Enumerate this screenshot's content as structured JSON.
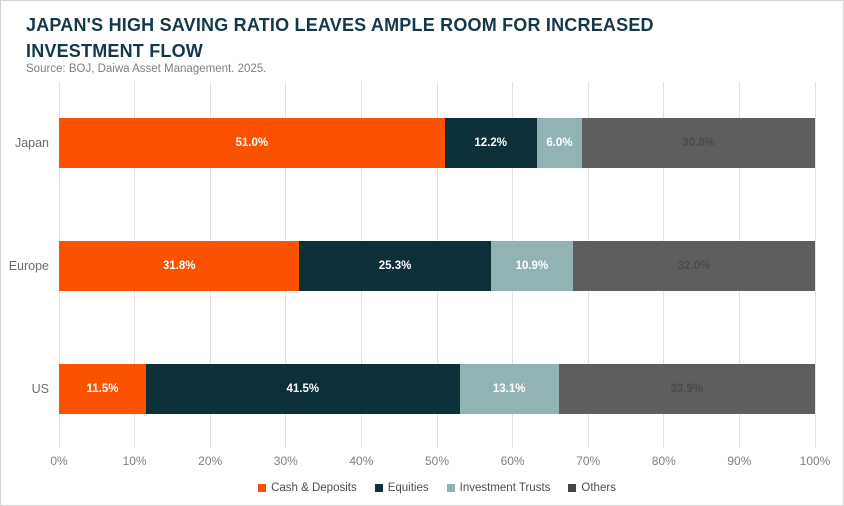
{
  "title": "JAPAN'S HIGH SAVING RATIO LEAVES AMPLE ROOM FOR INCREASED INVESTMENT FLOW",
  "source": "Source: BOJ, Daiwa Asset Management. 2025.",
  "colors": {
    "title": "#14384a",
    "source_text": "#7f7f7f",
    "gridline": "#e2e2e2",
    "axis_text": "#7f7f7f",
    "category_text": "#6b6b6b",
    "legend_text": "#4d4d4d",
    "frame_border": "#d3d3d3"
  },
  "chart_data": {
    "type": "bar",
    "orientation": "horizontal",
    "stacked": true,
    "grid": "vertical",
    "legend_position": "bottom",
    "xlim": [
      0,
      100
    ],
    "x_ticks": [
      "0%",
      "10%",
      "20%",
      "30%",
      "40%",
      "50%",
      "60%",
      "70%",
      "80%",
      "90%",
      "100%"
    ],
    "categories": [
      "Japan",
      "Europe",
      "US"
    ],
    "series": [
      {
        "name": "Cash & Deposits",
        "color": "#fc5200",
        "label_color": "#ffffff",
        "legend_color": "#fc5200",
        "values": [
          51.0,
          31.8,
          11.5
        ],
        "labels": [
          "51.0%",
          "31.8%",
          "11.5%"
        ]
      },
      {
        "name": "Equities",
        "color": "#0c3038",
        "label_color": "#ffffff",
        "legend_color": "#0c3038",
        "values": [
          12.2,
          25.3,
          41.5
        ],
        "labels": [
          "12.2%",
          "25.3%",
          "41.5%"
        ]
      },
      {
        "name": "Investment Trusts",
        "color": "#92b3b4",
        "label_color": "#ffffff",
        "legend_color": "#92b3b4",
        "values": [
          6.0,
          10.9,
          13.1
        ],
        "labels": [
          "6.0%",
          "10.9%",
          "13.1%"
        ]
      },
      {
        "name": "Others",
        "color": "#5e5e5e",
        "label_color": "#4b4b4d",
        "legend_color": "#454545",
        "values": [
          30.8,
          32.0,
          33.9
        ],
        "labels": [
          "30.8%",
          "32.0%",
          "33.9%"
        ]
      }
    ]
  }
}
